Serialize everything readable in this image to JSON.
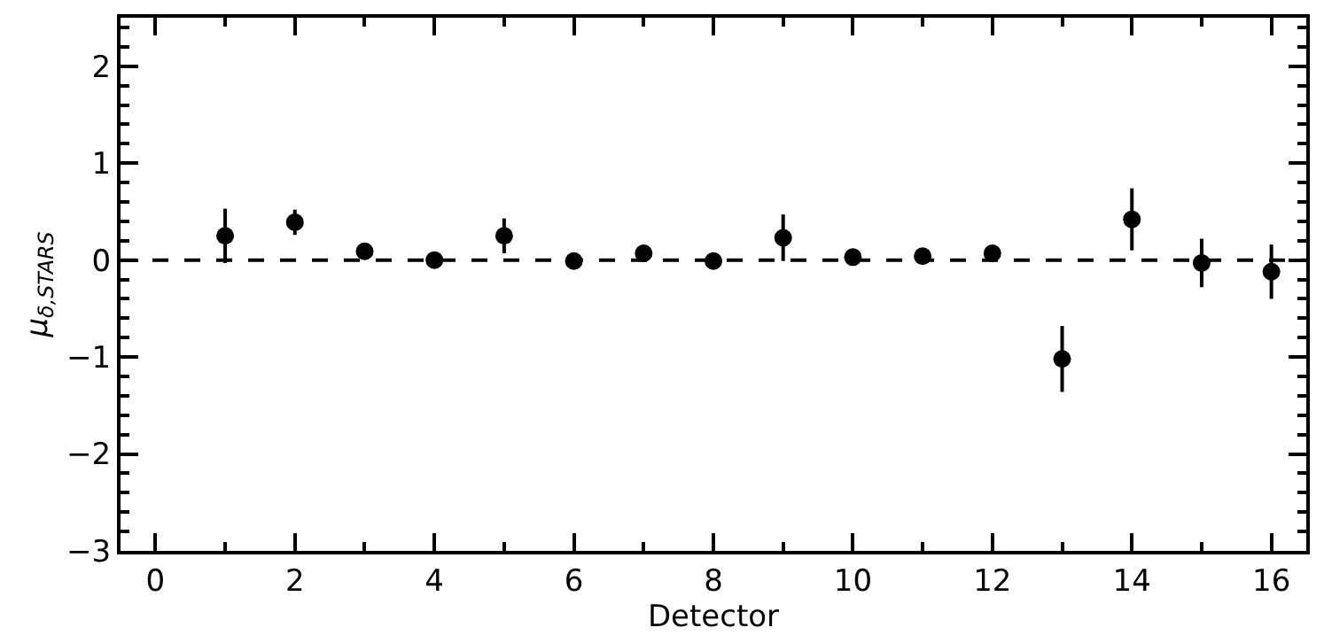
{
  "chart_data": {
    "type": "scatter",
    "xlabel": "Detector",
    "ylabel": "μ$_{δ,STARS}$",
    "x": [
      1,
      2,
      3,
      4,
      5,
      6,
      7,
      8,
      9,
      10,
      11,
      12,
      13,
      14,
      15,
      16
    ],
    "series": [
      {
        "color": "#000000",
        "values": [
          0.25,
          0.39,
          0.09,
          0.0,
          0.25,
          -0.01,
          0.07,
          -0.01,
          0.23,
          0.03,
          0.04,
          0.07,
          -1.02,
          0.42,
          -0.03,
          -0.12
        ],
        "errors": [
          0.28,
          0.13,
          0.03,
          0.03,
          0.18,
          0.02,
          0.03,
          0.02,
          0.24,
          0.04,
          0.03,
          0.04,
          0.34,
          0.32,
          0.25,
          0.28
        ]
      }
    ],
    "xlim": [
      -0.5,
      16.5
    ],
    "xticks": [
      0,
      2,
      4,
      6,
      8,
      10,
      12,
      14,
      16
    ],
    "ylim": [
      -3,
      2.5
    ],
    "yticks": [
      -3,
      -2,
      -1,
      0,
      1,
      2
    ],
    "ref_lines": [
      {
        "axis": "y",
        "value": 0,
        "color": "#000000",
        "line_style": "dashed"
      }
    ],
    "marker": "circle",
    "grid": false
  }
}
